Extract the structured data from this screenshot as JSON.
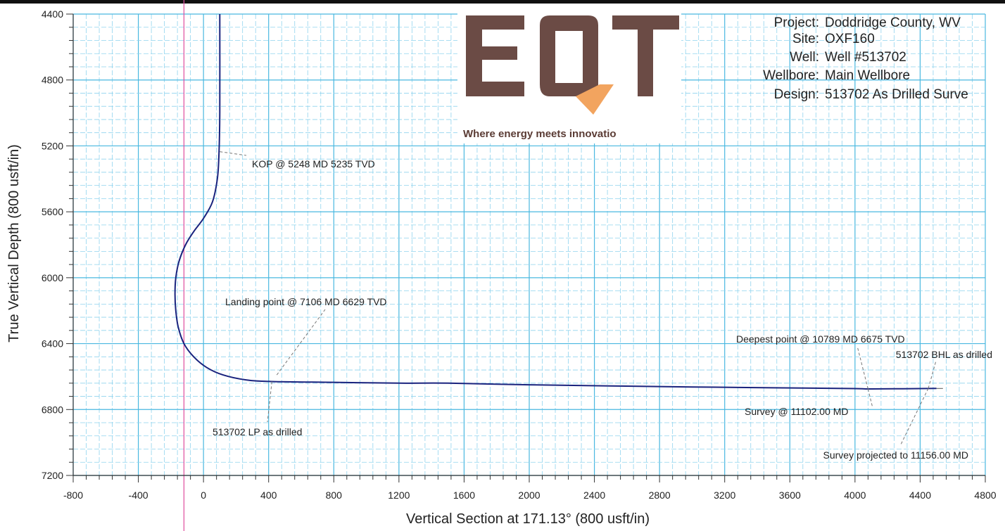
{
  "chart_data": {
    "type": "line",
    "xlabel": "Vertical Section at 171.13° (800 usft/in)",
    "ylabel": "True Vertical Depth (800 usft/in)",
    "xlim": [
      -800,
      4800
    ],
    "ylim": [
      4400,
      7200
    ],
    "y_inverted": true,
    "x_ticks": [
      -800,
      -400,
      0,
      400,
      800,
      1200,
      1600,
      2000,
      2400,
      2800,
      3200,
      3600,
      4000,
      4400,
      4800
    ],
    "y_ticks": [
      4400,
      4800,
      5200,
      5600,
      6000,
      6400,
      6800,
      7200
    ],
    "grid": true,
    "series": [
      {
        "x": [
          100,
          100,
          95,
          85,
          55,
          0,
          -60,
          -110,
          -150,
          -170,
          -175,
          -170,
          -155,
          -120,
          -60,
          20,
          120,
          260,
          420,
          800,
          1200,
          1500,
          2000,
          2500,
          3000,
          3500,
          4000,
          4100,
          4500
        ],
        "y": [
          4400,
          5000,
          5248,
          5400,
          5540,
          5640,
          5720,
          5800,
          5900,
          6000,
          6100,
          6200,
          6300,
          6400,
          6480,
          6545,
          6590,
          6620,
          6630,
          6635,
          6640,
          6640,
          6650,
          6657,
          6663,
          6668,
          6673,
          6675,
          6672
        ]
      }
    ],
    "annotations": [
      {
        "text": "KOP @ 5248 MD 5235 TVD",
        "x": 100,
        "y": 5235
      },
      {
        "text": "Landing point @ 7106 MD 6629 TVD",
        "x": 450,
        "y": 6590
      },
      {
        "text": "513702 LP as drilled",
        "x": 420,
        "y": 6630
      },
      {
        "text": "Deepest point @ 10789 MD 6675 TVD",
        "x": 4080,
        "y": 6675
      },
      {
        "text": "513702 BHL as drilled",
        "x": 4450,
        "y": 6672
      },
      {
        "text": "Survey @ 11102.00 MD",
        "x": 4080,
        "y": 6675
      },
      {
        "text": "Survey projected to 11156.00 MD",
        "x": 4450,
        "y": 6672
      }
    ]
  },
  "info": {
    "rows": [
      {
        "label": "Project:",
        "value": "Doddridge County, WV"
      },
      {
        "label": "Site:",
        "value": "OXF160"
      },
      {
        "label": "Well:",
        "value": "Well #513702"
      },
      {
        "label": "Wellbore:",
        "value": "Main Wellbore"
      },
      {
        "label": "Design:",
        "value": "513702 As Drilled Surve"
      }
    ]
  },
  "logo": {
    "text": "EQT",
    "tagline": "Where energy meets innovatio",
    "colors": {
      "brand": "#6b4b45",
      "accent": "#f2a45f"
    }
  },
  "colors": {
    "grid_major": "#49b8e0",
    "grid_minor": "#8fd3ee",
    "curve": "#1a237e",
    "leader": "#777777",
    "marker": "#e04fa0"
  }
}
